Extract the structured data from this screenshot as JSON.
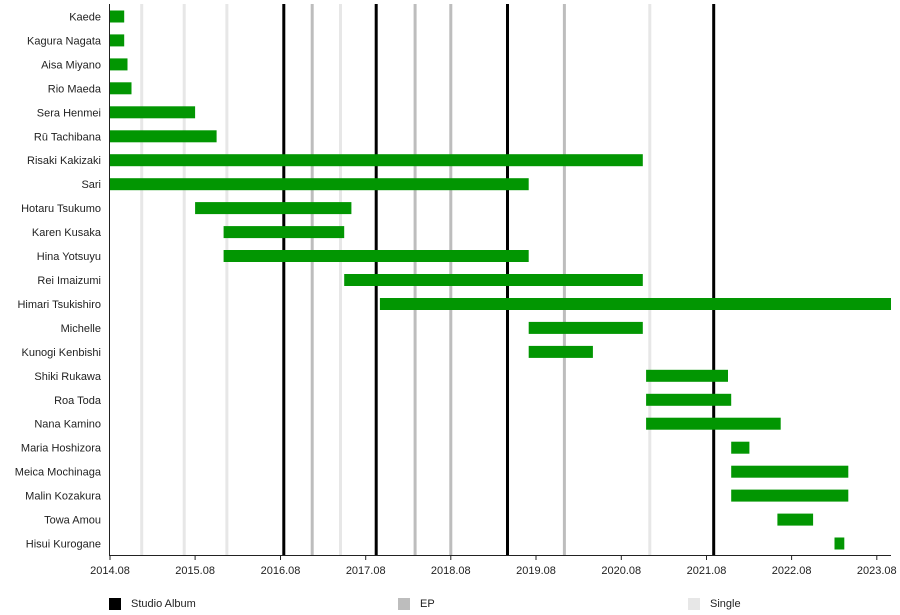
{
  "chart_data": {
    "type": "timeline",
    "x_ticks": [
      "2014.08",
      "2015.08",
      "2016.08",
      "2017.08",
      "2018.08",
      "2019.08",
      "2020.08",
      "2021.08",
      "2022.08",
      "2023.08"
    ],
    "x_range": [
      "2014-08-01",
      "2023-10-01"
    ],
    "bar_color": "#029602",
    "members": [
      {
        "name": "Kaede",
        "start": "2014-08-01",
        "end": "2014-10-01"
      },
      {
        "name": "Kagura Nagata",
        "start": "2014-08-01",
        "end": "2014-10-01"
      },
      {
        "name": "Aisa Miyano",
        "start": "2014-08-01",
        "end": "2014-10-15"
      },
      {
        "name": "Rio Maeda",
        "start": "2014-08-01",
        "end": "2014-11-01"
      },
      {
        "name": "Sera Henmei",
        "start": "2014-08-01",
        "end": "2015-08-01"
      },
      {
        "name": "Rū Tachibana",
        "start": "2014-08-01",
        "end": "2015-11-01"
      },
      {
        "name": "Risaki Kakizaki",
        "start": "2014-08-01",
        "end": "2020-11-01"
      },
      {
        "name": "Sari",
        "start": "2014-08-01",
        "end": "2019-07-01"
      },
      {
        "name": "Hotaru Tsukumo",
        "start": "2015-08-01",
        "end": "2017-06-01"
      },
      {
        "name": "Karen Kusaka",
        "start": "2015-12-01",
        "end": "2017-05-01"
      },
      {
        "name": "Hina Yotsuyu",
        "start": "2015-12-01",
        "end": "2019-07-01"
      },
      {
        "name": "Rei Imaizumi",
        "start": "2017-05-01",
        "end": "2020-11-01"
      },
      {
        "name": "Himari Tsukishiro",
        "start": "2017-10-01",
        "end": "2023-10-01"
      },
      {
        "name": "Michelle",
        "start": "2019-07-01",
        "end": "2020-11-01"
      },
      {
        "name": "Kunogi Kenbishi",
        "start": "2019-07-01",
        "end": "2020-04-01"
      },
      {
        "name": "Shiki Rukawa",
        "start": "2020-11-15",
        "end": "2021-11-01"
      },
      {
        "name": "Roa Toda",
        "start": "2020-11-15",
        "end": "2021-11-15"
      },
      {
        "name": "Nana Kamino",
        "start": "2020-11-15",
        "end": "2022-06-15"
      },
      {
        "name": "Maria Hoshizora",
        "start": "2021-11-15",
        "end": "2022-02-01"
      },
      {
        "name": "Meica Mochinaga",
        "start": "2021-11-15",
        "end": "2023-04-01"
      },
      {
        "name": "Malin Kozakura",
        "start": "2021-11-15",
        "end": "2023-04-01"
      },
      {
        "name": "Towa Amou",
        "start": "2022-06-01",
        "end": "2022-11-01"
      },
      {
        "name": "Hisui Kurogane",
        "start": "2023-02-01",
        "end": "2023-03-15"
      }
    ],
    "release_lines": [
      {
        "date": "2014-12-15",
        "type": "single"
      },
      {
        "date": "2015-06-15",
        "type": "single"
      },
      {
        "date": "2015-12-15",
        "type": "single"
      },
      {
        "date": "2016-08-15",
        "type": "studio_album"
      },
      {
        "date": "2016-12-15",
        "type": "ep"
      },
      {
        "date": "2017-04-15",
        "type": "single"
      },
      {
        "date": "2017-09-15",
        "type": "studio_album"
      },
      {
        "date": "2018-03-01",
        "type": "ep"
      },
      {
        "date": "2018-08-01",
        "type": "ep"
      },
      {
        "date": "2019-04-01",
        "type": "studio_album"
      },
      {
        "date": "2019-12-01",
        "type": "ep"
      },
      {
        "date": "2020-12-01",
        "type": "single"
      },
      {
        "date": "2021-09-01",
        "type": "studio_album"
      }
    ],
    "legend": [
      {
        "key": "studio_album",
        "label": "Studio Album",
        "color": "#000000"
      },
      {
        "key": "ep",
        "label": "EP",
        "color": "#bdbdbd"
      },
      {
        "key": "single",
        "label": "Single",
        "color": "#e7e7e7"
      }
    ]
  }
}
